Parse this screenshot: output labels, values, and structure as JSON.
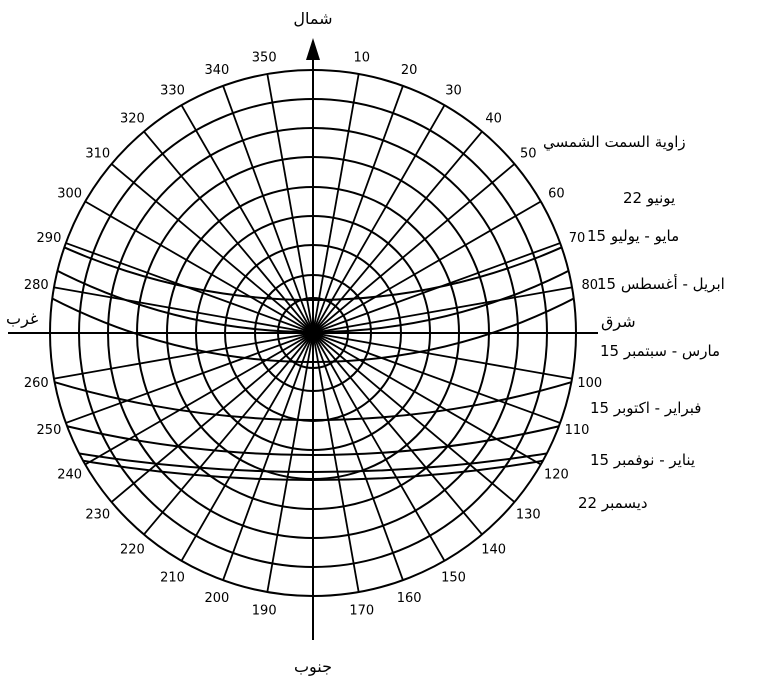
{
  "compass": {
    "north": "شمال",
    "south": "جنوب",
    "east": "شرق",
    "west": "غرب"
  },
  "azimuth_title": "زاوية السمت الشمسي",
  "azimuth_degrees": [
    "10",
    "20",
    "30",
    "40",
    "50",
    "60",
    "70",
    "80",
    "100",
    "110",
    "120",
    "130",
    "140",
    "150",
    "160",
    "170",
    "190",
    "200",
    "210",
    "220",
    "230",
    "240",
    "250",
    "260",
    "280",
    "290",
    "300",
    "310",
    "320",
    "330",
    "340",
    "350"
  ],
  "sun_paths": [
    {
      "label": "22 يونيو"
    },
    {
      "label": "15 مايو - يوليو"
    },
    {
      "label": "15 ابريل - أغسطس"
    },
    {
      "label": "15 مارس - سبتمبر"
    },
    {
      "label": "15 فبراير - اكتوبر"
    },
    {
      "label": "15 يناير - نوفمبر"
    },
    {
      "label": "22 ديسمبر"
    }
  ]
}
